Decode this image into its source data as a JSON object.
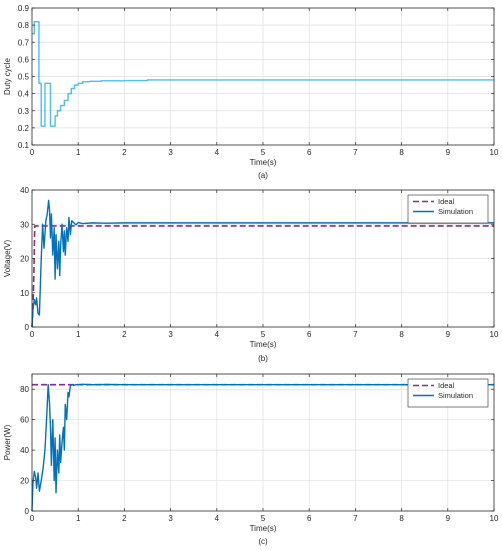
{
  "colors": {
    "simulation_a": "#4dbeee",
    "simulation": "#0072bd",
    "ideal": "#7e2f8e",
    "grid": "#dfdfdf",
    "axis": "#262626"
  },
  "chart_data": [
    {
      "type": "line",
      "caption": "(a)",
      "xlabel": "Time(s)",
      "ylabel": "Duty cycle",
      "xlim": [
        0,
        10
      ],
      "ylim": [
        0.1,
        0.9
      ],
      "xticks": [
        0,
        1,
        2,
        3,
        4,
        5,
        6,
        7,
        8,
        9,
        10
      ],
      "yticks": [
        0.1,
        0.2,
        0.3,
        0.4,
        0.5,
        0.6,
        0.7,
        0.8,
        0.9
      ],
      "grid": true,
      "legend": null,
      "series": [
        {
          "x": [
            0,
            0.05,
            0.05,
            0.15,
            0.15,
            0.2,
            0.2,
            0.28,
            0.28,
            0.4,
            0.4,
            0.5,
            0.5,
            0.55,
            0.55,
            0.62,
            0.62,
            0.7,
            0.7,
            0.78,
            0.78,
            0.85,
            0.85,
            0.92,
            0.92,
            1.0,
            1.0,
            1.1,
            1.1,
            1.25,
            1.25,
            1.5,
            1.5,
            2.0,
            2.0,
            2.5,
            2.5,
            10
          ],
          "y": [
            0.75,
            0.75,
            0.82,
            0.82,
            0.46,
            0.46,
            0.21,
            0.21,
            0.46,
            0.46,
            0.21,
            0.21,
            0.27,
            0.27,
            0.3,
            0.3,
            0.33,
            0.33,
            0.36,
            0.36,
            0.4,
            0.4,
            0.43,
            0.43,
            0.45,
            0.45,
            0.46,
            0.46,
            0.47,
            0.47,
            0.472,
            0.472,
            0.475,
            0.475,
            0.476,
            0.476,
            0.48,
            0.48
          ]
        }
      ]
    },
    {
      "type": "line",
      "caption": "(b)",
      "xlabel": "Time(s)",
      "ylabel": "Voltage(V)",
      "xlim": [
        0,
        10
      ],
      "ylim": [
        0,
        40
      ],
      "xticks": [
        0,
        1,
        2,
        3,
        4,
        5,
        6,
        7,
        8,
        9,
        10
      ],
      "yticks": [
        0,
        10,
        20,
        30,
        40
      ],
      "grid": true,
      "legend": "top-right",
      "series": [
        {
          "name": "Ideal",
          "style": "dashed",
          "x": [
            0,
            0.02,
            0.04,
            0.06,
            10
          ],
          "y": [
            0,
            5,
            15,
            29.5,
            29.5
          ]
        },
        {
          "name": "Simulation",
          "style": "solid",
          "x": [
            0,
            0.02,
            0.05,
            0.08,
            0.1,
            0.13,
            0.16,
            0.2,
            0.23,
            0.26,
            0.3,
            0.33,
            0.36,
            0.38,
            0.4,
            0.42,
            0.45,
            0.48,
            0.5,
            0.52,
            0.55,
            0.58,
            0.6,
            0.62,
            0.65,
            0.68,
            0.7,
            0.72,
            0.75,
            0.78,
            0.8,
            0.83,
            0.86,
            0.9,
            0.95,
            1.0,
            1.1,
            1.3,
            1.6,
            2.0,
            10
          ],
          "y": [
            0,
            5,
            8,
            6.5,
            8.5,
            4,
            3.5,
            20,
            30,
            23,
            31,
            33,
            37,
            34,
            26,
            33,
            21,
            29,
            14,
            27,
            17,
            25,
            15,
            24,
            30,
            22,
            28,
            21,
            29,
            25,
            32,
            27,
            31,
            30.5,
            29.8,
            30.5,
            30.2,
            30.4,
            30.3,
            30.4,
            30.4
          ]
        }
      ]
    },
    {
      "type": "line",
      "caption": "(c)",
      "xlabel": "Time(s)",
      "ylabel": "Power(W)",
      "xlim": [
        0,
        10
      ],
      "ylim": [
        0,
        90
      ],
      "xticks": [
        0,
        1,
        2,
        3,
        4,
        5,
        6,
        7,
        8,
        9,
        10
      ],
      "yticks": [
        0,
        20,
        40,
        60,
        80
      ],
      "grid": true,
      "legend": "top-right",
      "series": [
        {
          "name": "Ideal",
          "style": "dashed",
          "x": [
            0,
            10
          ],
          "y": [
            83,
            83
          ]
        },
        {
          "name": "Simulation",
          "style": "solid",
          "x": [
            0,
            0.02,
            0.05,
            0.08,
            0.1,
            0.13,
            0.16,
            0.2,
            0.24,
            0.28,
            0.32,
            0.35,
            0.38,
            0.4,
            0.42,
            0.45,
            0.48,
            0.5,
            0.52,
            0.55,
            0.58,
            0.6,
            0.62,
            0.65,
            0.68,
            0.7,
            0.72,
            0.75,
            0.78,
            0.8,
            0.83,
            0.86,
            0.9,
            0.95,
            1.0,
            1.1,
            1.3,
            1.6,
            2.0,
            10
          ],
          "y": [
            0,
            18,
            26,
            22,
            15,
            25,
            13,
            20,
            28,
            40,
            63,
            83,
            70,
            55,
            30,
            60,
            20,
            48,
            12,
            40,
            25,
            50,
            32,
            45,
            55,
            40,
            70,
            60,
            78,
            75,
            82,
            83,
            82.5,
            83,
            83,
            83.2,
            83,
            83.1,
            83,
            83
          ]
        }
      ]
    }
  ]
}
